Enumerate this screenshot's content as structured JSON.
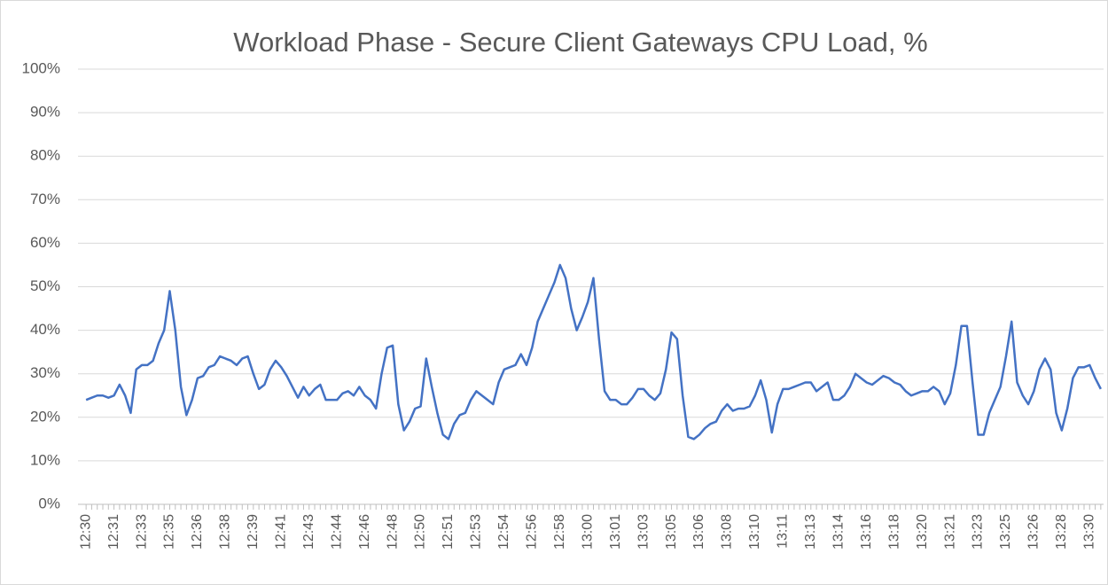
{
  "chart_data": {
    "type": "line",
    "title": "Workload Phase - Secure Client Gateways CPU Load, %",
    "categories": [
      "12:30",
      null,
      null,
      null,
      null,
      "12:31",
      null,
      null,
      null,
      null,
      "12:33",
      null,
      null,
      null,
      null,
      "12:35",
      null,
      null,
      null,
      null,
      "12:36",
      null,
      null,
      null,
      null,
      "12:38",
      null,
      null,
      null,
      null,
      "12:39",
      null,
      null,
      null,
      null,
      "12:41",
      null,
      null,
      null,
      null,
      "12:43",
      null,
      null,
      null,
      null,
      "12:44",
      null,
      null,
      null,
      null,
      "12:46",
      null,
      null,
      null,
      null,
      "12:48",
      null,
      null,
      null,
      null,
      "12:50",
      null,
      null,
      null,
      null,
      "12:51",
      null,
      null,
      null,
      null,
      "12:53",
      null,
      null,
      null,
      null,
      "12:54",
      null,
      null,
      null,
      null,
      "12:56",
      null,
      null,
      null,
      null,
      "12:58",
      null,
      null,
      null,
      null,
      "13:00",
      null,
      null,
      null,
      null,
      "13:01",
      null,
      null,
      null,
      null,
      "13:03",
      null,
      null,
      null,
      null,
      "13:05",
      null,
      null,
      null,
      null,
      "13:06",
      null,
      null,
      null,
      null,
      "13:08",
      null,
      null,
      null,
      null,
      "13:10",
      null,
      null,
      null,
      null,
      "13:11",
      null,
      null,
      null,
      null,
      "13:13",
      null,
      null,
      null,
      null,
      "13:14",
      null,
      null,
      null,
      null,
      "13:16",
      null,
      null,
      null,
      null,
      "13:18",
      null,
      null,
      null,
      null,
      "13:20",
      null,
      null,
      null,
      null,
      "13:21",
      null,
      null,
      null,
      null,
      "13:23",
      null,
      null,
      null,
      null,
      "13:25",
      null,
      null,
      null,
      null,
      "13:26",
      null,
      null,
      null,
      null,
      "13:28",
      null,
      null,
      null,
      null,
      "13:30",
      null,
      null
    ],
    "series": [
      {
        "name": "CPU Load",
        "color": "#4472c4",
        "values": [
          24,
          24.5,
          25,
          25,
          24.5,
          25,
          27.5,
          25,
          21,
          31,
          32,
          32,
          33,
          37,
          40,
          49,
          40,
          27,
          20.5,
          24,
          29,
          29.5,
          31.5,
          32,
          34,
          33.5,
          33,
          32,
          33.5,
          34,
          30,
          26.5,
          27.5,
          31,
          33,
          31.5,
          29.5,
          27,
          24.5,
          27,
          25,
          26.5,
          27.5,
          24,
          24,
          24,
          25.5,
          26,
          25,
          27,
          25,
          24,
          22,
          30,
          36,
          36.5,
          23,
          17,
          19,
          22,
          22.5,
          33.5,
          27,
          21,
          16,
          15,
          18.5,
          20.5,
          21,
          24,
          26,
          25,
          24,
          23,
          28,
          31,
          31.5,
          32,
          34.5,
          32,
          36,
          42,
          45,
          48,
          51,
          55,
          52,
          45,
          40,
          43,
          46.5,
          52,
          38,
          26,
          24,
          24,
          23,
          23,
          24.5,
          26.5,
          26.5,
          25,
          24,
          25.5,
          31,
          39.5,
          38,
          25,
          15.5,
          15,
          16,
          17.5,
          18.5,
          19,
          21.5,
          23,
          21.5,
          22,
          22,
          22.5,
          25,
          28.5,
          24,
          16.5,
          23,
          26.5,
          26.5,
          27,
          27.5,
          28,
          28,
          26,
          27,
          28,
          24,
          24,
          25,
          27,
          30,
          29,
          28,
          27.5,
          28.5,
          29.5,
          29,
          28,
          27.5,
          26,
          25,
          25.5,
          26,
          26,
          27,
          26,
          23,
          25.5,
          32,
          41,
          41,
          28,
          16,
          16,
          21,
          24,
          27,
          34,
          42,
          28,
          25,
          23,
          26,
          31,
          33.5,
          31,
          21,
          17,
          22,
          29,
          31.5,
          31.5,
          32,
          29,
          26.5
        ]
      }
    ],
    "ylim": [
      0,
      100
    ],
    "yticks": [
      {
        "value": 0,
        "label": "0%"
      },
      {
        "value": 10,
        "label": "10%"
      },
      {
        "value": 20,
        "label": "20%"
      },
      {
        "value": 30,
        "label": "30%"
      },
      {
        "value": 40,
        "label": "40%"
      },
      {
        "value": 50,
        "label": "50%"
      },
      {
        "value": 60,
        "label": "60%"
      },
      {
        "value": 70,
        "label": "70%"
      },
      {
        "value": 80,
        "label": "80%"
      },
      {
        "value": 90,
        "label": "90%"
      },
      {
        "value": 100,
        "label": "100%"
      }
    ],
    "grid": true
  }
}
